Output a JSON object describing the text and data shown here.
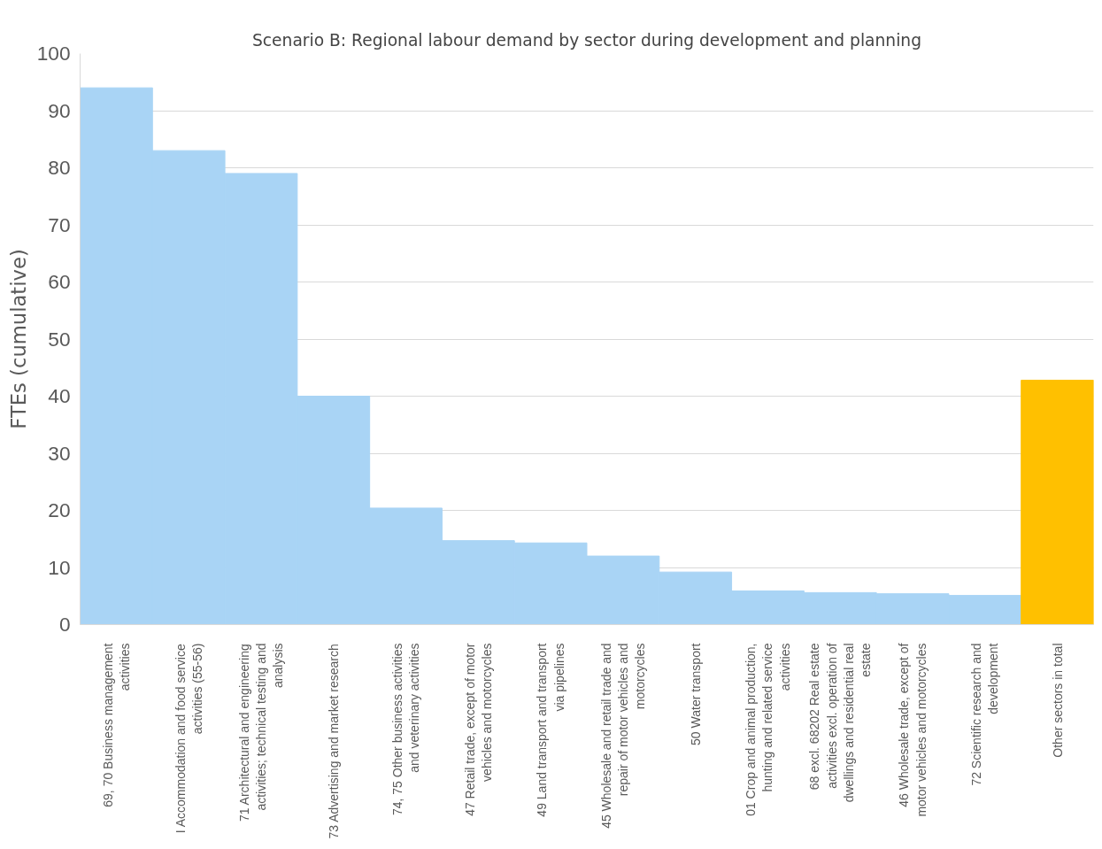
{
  "chart_data": {
    "type": "bar",
    "title": "Scenario B: Regional labour demand by sector during development and planning",
    "ylabel": "FTEs (cumulative)",
    "categories": [
      "69, 70 Business management activities",
      "I Accommodation and food service activities (55-56)",
      "71 Architectural and engineering activities; technical testing and analysis",
      "73 Advertising and market research",
      "74, 75 Other business activities and veterinary activities",
      "47 Retail trade, except of motor vehicles and motorcycles",
      "49 Land transport and transport via pipelines",
      "45 Wholesale and retail trade and repair of motor vehicles and motorcycles",
      "50 Water transport",
      "01 Crop and animal production, hunting and related service activities",
      "68 excl. 68202 Real estate activities excl. operation of dwellings and residential real estate",
      "46 Wholesale trade, except of motor vehicles and motorcycles",
      "72 Scientific research and development",
      "Other sectors in total"
    ],
    "values": [
      94,
      83,
      79,
      40,
      20.4,
      14.7,
      14.3,
      12,
      9.2,
      5.9,
      5.6,
      5.4,
      5.1,
      42.8
    ],
    "colors": [
      "#a9d4f5",
      "#a9d4f5",
      "#a9d4f5",
      "#a9d4f5",
      "#a9d4f5",
      "#a9d4f5",
      "#a9d4f5",
      "#a9d4f5",
      "#a9d4f5",
      "#a9d4f5",
      "#a9d4f5",
      "#a9d4f5",
      "#a9d4f5",
      "#ffc000"
    ],
    "ylim": [
      0,
      100
    ],
    "yticks": [
      0,
      10,
      20,
      30,
      40,
      50,
      60,
      70,
      80,
      90,
      100
    ],
    "grid": "y"
  }
}
